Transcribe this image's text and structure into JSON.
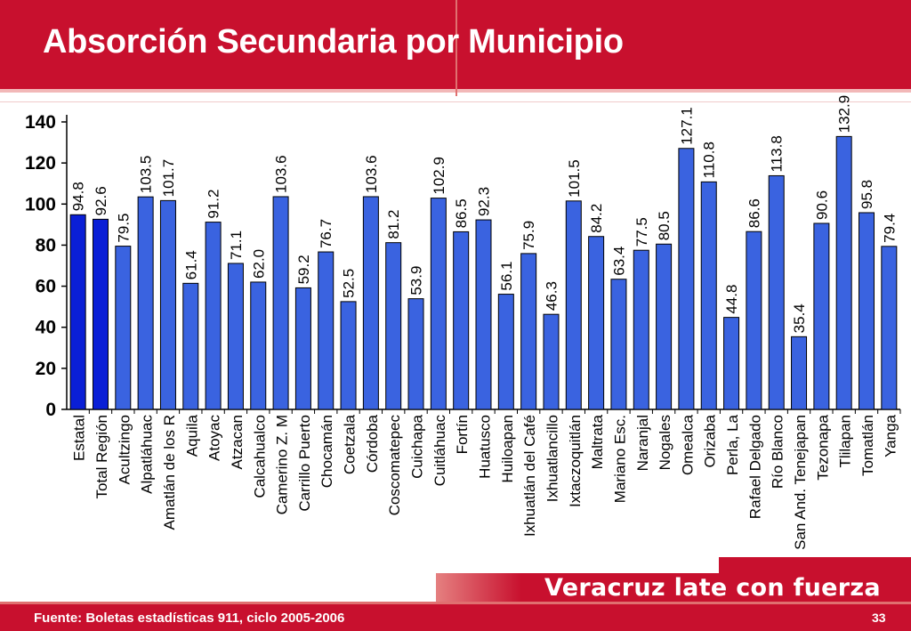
{
  "slide": {
    "title": "Absorción Secundaria por Municipio",
    "source": "Fuente: Boletas estadísticas 911, ciclo 2005-2006",
    "page_number": "33",
    "slogan": "Veracruz late con fuerza"
  },
  "colors": {
    "header_red": "#c8102e",
    "bar_blue": "#3a63e0",
    "bar_highlight": "#0a1fd6"
  },
  "chart_data": {
    "type": "bar",
    "title": "Absorción Secundaria por Municipio",
    "xlabel": "",
    "ylabel": "",
    "ylim": [
      0,
      140
    ],
    "yticks": [
      0,
      20,
      40,
      60,
      80,
      100,
      120,
      140
    ],
    "grid": false,
    "legend": "none",
    "categories": [
      "Estatal",
      "Total Región",
      "Acultzingo",
      "Alpatláhuac",
      "Amatlán de los R",
      "Aquila",
      "Atoyac",
      "Atzacan",
      "Calcahualco",
      "Camerino Z. M",
      "Carrillo Puerto",
      "Chocamán",
      "Coetzala",
      "Córdoba",
      "Coscomatepec",
      "Cuichapa",
      "Cuitláhuac",
      "Fortín",
      "Huatusco",
      "Huiloapan",
      "Ixhuatlán del Café",
      "Ixhuatlancillo",
      "Ixtaczoquitlán",
      "Maltrata",
      "Mariano Esc.",
      "Naranjal",
      "Nogales",
      "Omealca",
      "Orizaba",
      "Perla, La",
      "Rafael Delgado",
      "Río Blanco",
      "San And. Tenejapan",
      "Tezonapa",
      "Tlilapan",
      "Tomatlán",
      "Yanga"
    ],
    "values": [
      94.8,
      92.6,
      79.5,
      103.5,
      101.7,
      61.4,
      91.2,
      71.1,
      62.0,
      103.6,
      59.2,
      76.7,
      52.5,
      103.6,
      81.2,
      53.9,
      102.9,
      86.5,
      92.3,
      56.1,
      75.9,
      46.3,
      101.5,
      84.2,
      63.4,
      77.5,
      80.5,
      127.1,
      110.8,
      44.8,
      86.6,
      113.8,
      35.4,
      90.6,
      132.9,
      95.8,
      79.4
    ],
    "value_labels": [
      "94.8",
      "92.6",
      "79.5",
      "103.5",
      "101.7",
      "61.4",
      "91.2",
      "71.1",
      "62.0",
      "103.6",
      "59.2",
      "76.7",
      "52.5",
      "103.6",
      "81.2",
      "53.9",
      "102.9",
      "86.5",
      "92.3",
      "56.1",
      "75.9",
      "46.3",
      "101.5",
      "84.2",
      "63.4",
      "77.5",
      "80.5",
      "127.1",
      "110.8",
      "44.8",
      "86.6",
      "113.8",
      "35.4",
      "90.6",
      "132.9",
      "95.8",
      "79.4"
    ],
    "highlighted": [
      "Estatal",
      "Total Región"
    ]
  }
}
